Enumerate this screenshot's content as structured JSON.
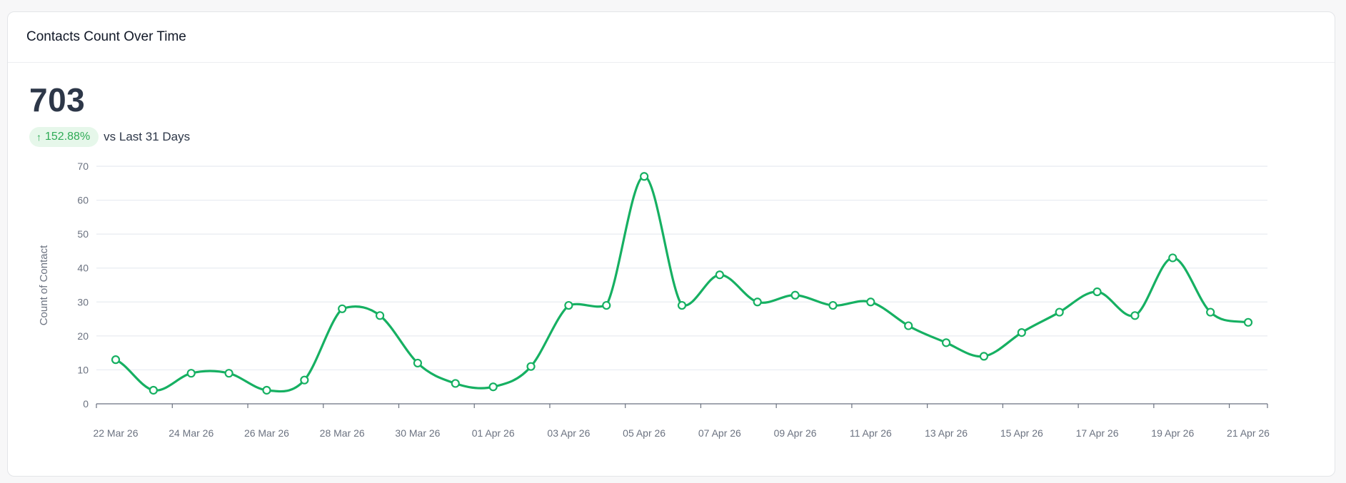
{
  "card": {
    "title": "Contacts Count Over Time",
    "metric_value": "703",
    "delta": {
      "icon": "arrow-up-icon",
      "arrow_glyph": "↑",
      "value": "152.88%",
      "comparison": "vs Last 31 Days"
    }
  },
  "colors": {
    "line": "#16b062",
    "badge_bg": "#e6f7ea",
    "badge_text": "#2eab55",
    "grid": "#e8ebf1",
    "axis": "#6b7280"
  },
  "chart_data": {
    "type": "line",
    "title": "Contacts Count Over Time",
    "xlabel": "",
    "ylabel": "Count of Contact",
    "ylim": [
      0,
      70
    ],
    "yticks": [
      0,
      10,
      20,
      30,
      40,
      50,
      60,
      70
    ],
    "grid": true,
    "legend": "none",
    "x": [
      "22 Mar 26",
      "23 Mar 26",
      "24 Mar 26",
      "25 Mar 26",
      "26 Mar 26",
      "27 Mar 26",
      "28 Mar 26",
      "29 Mar 26",
      "30 Mar 26",
      "31 Mar 26",
      "01 Apr 26",
      "02 Apr 26",
      "03 Apr 26",
      "04 Apr 26",
      "05 Apr 26",
      "06 Apr 26",
      "07 Apr 26",
      "08 Apr 26",
      "09 Apr 26",
      "10 Apr 26",
      "11 Apr 26",
      "12 Apr 26",
      "13 Apr 26",
      "14 Apr 26",
      "15 Apr 26",
      "16 Apr 26",
      "17 Apr 26",
      "18 Apr 26",
      "19 Apr 26",
      "20 Apr 26",
      "21 Apr 26"
    ],
    "xtick_labels": [
      "22 Mar 26",
      "24 Mar 26",
      "26 Mar 26",
      "28 Mar 26",
      "30 Mar 26",
      "01 Apr 26",
      "03 Apr 26",
      "05 Apr 26",
      "07 Apr 26",
      "09 Apr 26",
      "11 Apr 26",
      "13 Apr 26",
      "15 Apr 26",
      "17 Apr 26",
      "19 Apr 26",
      "21 Apr 26"
    ],
    "series": [
      {
        "name": "Count of Contact",
        "values": [
          13,
          4,
          9,
          9,
          4,
          7,
          28,
          26,
          12,
          6,
          5,
          11,
          29,
          29,
          67,
          29,
          38,
          30,
          32,
          29,
          30,
          23,
          18,
          14,
          21,
          27,
          33,
          26,
          43,
          27,
          24
        ]
      }
    ]
  }
}
